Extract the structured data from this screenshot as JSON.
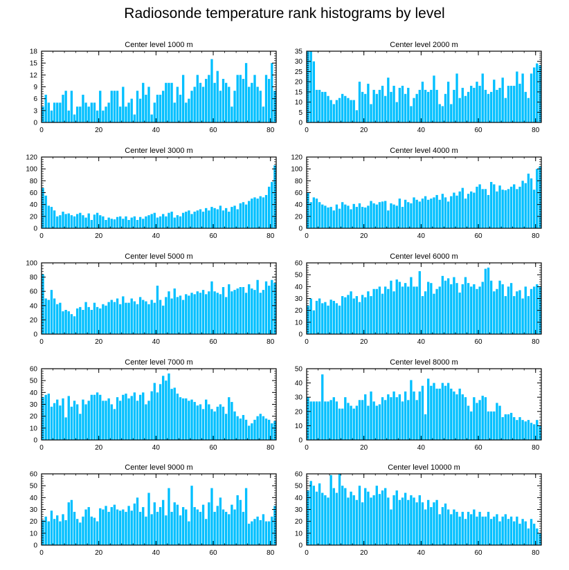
{
  "title": "Radiosonde temperature rank histograms by level",
  "colors": {
    "bar": "#00BFFF",
    "bar_edge": "#ffffff",
    "axis": "#000000",
    "text": "#000000"
  },
  "chart_data": [
    {
      "type": "bar",
      "title": "Center level 1000 m",
      "xlabel": "",
      "ylabel": "",
      "xlim": [
        0,
        82
      ],
      "ylim": [
        0,
        18
      ],
      "xticks": [
        0,
        20,
        40,
        60,
        80
      ],
      "yticks": [
        0,
        3,
        6,
        9,
        12,
        15,
        18
      ],
      "values": [
        4,
        7,
        5,
        3,
        5,
        5,
        5,
        7,
        8,
        3,
        8,
        2,
        4,
        4,
        7,
        5,
        4,
        5,
        5,
        3,
        8,
        3,
        4,
        5,
        8,
        8,
        8,
        4,
        9,
        4,
        5,
        6,
        2,
        8,
        6,
        10,
        7,
        9,
        2,
        5,
        7,
        7,
        8,
        10,
        10,
        10,
        5,
        9,
        7,
        12,
        5,
        6,
        8,
        9,
        12,
        10,
        9,
        11,
        12,
        16,
        10,
        13,
        8,
        11,
        10,
        9,
        4,
        8,
        12,
        12,
        11,
        15,
        9,
        10,
        12,
        9,
        8,
        4,
        12,
        11,
        15,
        8
      ]
    },
    {
      "type": "bar",
      "title": "Center level 2000 m",
      "xlabel": "",
      "ylabel": "",
      "xlim": [
        0,
        82
      ],
      "ylim": [
        0,
        35
      ],
      "xticks": [
        0,
        20,
        40,
        60,
        80
      ],
      "yticks": [
        0,
        5,
        10,
        15,
        20,
        25,
        30,
        35
      ],
      "values": [
        35,
        35,
        30,
        16,
        16,
        15,
        15,
        13,
        11,
        9,
        11,
        12,
        14,
        13,
        12,
        11,
        11,
        6,
        20,
        15,
        14,
        19,
        9,
        16,
        14,
        16,
        18,
        13,
        22,
        15,
        18,
        10,
        17,
        18,
        14,
        17,
        8,
        12,
        14,
        16,
        20,
        16,
        15,
        16,
        23,
        16,
        9,
        8,
        14,
        20,
        9,
        16,
        24,
        12,
        17,
        13,
        15,
        18,
        17,
        20,
        18,
        24,
        16,
        14,
        15,
        21,
        16,
        17,
        22,
        12,
        18,
        18,
        18,
        25,
        19,
        24,
        15,
        12,
        24,
        27,
        29,
        28
      ]
    },
    {
      "type": "bar",
      "title": "Center level 3000 m",
      "xlabel": "",
      "ylabel": "",
      "xlim": [
        0,
        82
      ],
      "ylim": [
        0,
        120
      ],
      "xticks": [
        0,
        20,
        40,
        60,
        80
      ],
      "yticks": [
        0,
        20,
        40,
        60,
        80,
        100,
        120
      ],
      "values": [
        68,
        55,
        38,
        36,
        30,
        20,
        22,
        28,
        24,
        25,
        22,
        20,
        24,
        26,
        22,
        18,
        25,
        14,
        23,
        26,
        22,
        20,
        14,
        18,
        16,
        15,
        19,
        20,
        16,
        20,
        14,
        18,
        20,
        14,
        19,
        16,
        20,
        22,
        24,
        26,
        18,
        20,
        24,
        20,
        26,
        28,
        18,
        22,
        20,
        26,
        28,
        30,
        24,
        28,
        30,
        32,
        28,
        34,
        30,
        36,
        34,
        32,
        38,
        30,
        34,
        28,
        36,
        38,
        32,
        42,
        44,
        40,
        46,
        50,
        52,
        50,
        54,
        52,
        56,
        70,
        78,
        106
      ]
    },
    {
      "type": "bar",
      "title": "Center level 4000 m",
      "xlabel": "",
      "ylabel": "",
      "xlim": [
        0,
        82
      ],
      "ylim": [
        0,
        120
      ],
      "xticks": [
        0,
        20,
        40,
        60,
        80
      ],
      "yticks": [
        0,
        20,
        40,
        60,
        80,
        100,
        120
      ],
      "values": [
        60,
        44,
        52,
        50,
        44,
        40,
        38,
        35,
        36,
        30,
        40,
        33,
        44,
        40,
        38,
        32,
        41,
        36,
        42,
        36,
        35,
        38,
        46,
        42,
        40,
        44,
        45,
        46,
        30,
        42,
        40,
        38,
        50,
        36,
        48,
        44,
        42,
        52,
        48,
        45,
        50,
        54,
        48,
        50,
        52,
        56,
        48,
        58,
        52,
        45,
        54,
        60,
        55,
        62,
        68,
        50,
        58,
        62,
        60,
        70,
        74,
        66,
        66,
        56,
        78,
        74,
        62,
        72,
        65,
        64,
        66,
        70,
        74,
        66,
        70,
        80,
        76,
        92,
        84,
        65,
        100,
        104
      ]
    },
    {
      "type": "bar",
      "title": "Center level 5000 m",
      "xlabel": "",
      "ylabel": "",
      "xlim": [
        0,
        82
      ],
      "ylim": [
        0,
        100
      ],
      "xticks": [
        0,
        20,
        40,
        60,
        80
      ],
      "yticks": [
        0,
        20,
        40,
        60,
        80,
        100
      ],
      "values": [
        84,
        50,
        48,
        62,
        50,
        42,
        44,
        32,
        34,
        32,
        28,
        25,
        36,
        38,
        34,
        45,
        38,
        34,
        44,
        38,
        36,
        42,
        40,
        45,
        48,
        45,
        50,
        42,
        53,
        44,
        44,
        50,
        46,
        42,
        52,
        48,
        46,
        42,
        48,
        44,
        68,
        48,
        40,
        52,
        60,
        50,
        64,
        52,
        54,
        48,
        56,
        54,
        58,
        56,
        60,
        58,
        62,
        56,
        60,
        74,
        60,
        58,
        56,
        66,
        52,
        70,
        60,
        62,
        64,
        66,
        66,
        58,
        70,
        64,
        62,
        76,
        58,
        62,
        74,
        68,
        76,
        72
      ]
    },
    {
      "type": "bar",
      "title": "Center level 6000 m",
      "xlabel": "",
      "ylabel": "",
      "xlim": [
        0,
        82
      ],
      "ylim": [
        0,
        60
      ],
      "xticks": [
        0,
        20,
        40,
        60,
        80
      ],
      "yticks": [
        0,
        10,
        20,
        30,
        40,
        50,
        60
      ],
      "values": [
        24,
        30,
        20,
        28,
        30,
        26,
        27,
        24,
        29,
        28,
        26,
        24,
        32,
        31,
        33,
        36,
        30,
        32,
        27,
        33,
        31,
        36,
        32,
        38,
        38,
        40,
        34,
        40,
        38,
        45,
        36,
        46,
        44,
        40,
        43,
        40,
        48,
        40,
        40,
        53,
        32,
        36,
        44,
        43,
        34,
        38,
        40,
        49,
        45,
        47,
        42,
        48,
        43,
        35,
        42,
        48,
        43,
        40,
        42,
        38,
        40,
        44,
        55,
        56,
        45,
        36,
        38,
        45,
        42,
        32,
        40,
        43,
        32,
        36,
        37,
        30,
        40,
        32,
        38,
        40,
        42,
        40
      ]
    },
    {
      "type": "bar",
      "title": "Center level 7000 m",
      "xlabel": "",
      "ylabel": "",
      "xlim": [
        0,
        82
      ],
      "ylim": [
        0,
        60
      ],
      "xticks": [
        0,
        20,
        40,
        60,
        80
      ],
      "yticks": [
        0,
        10,
        20,
        30,
        40,
        50,
        60
      ],
      "values": [
        36,
        38,
        39,
        28,
        31,
        34,
        29,
        35,
        19,
        37,
        28,
        33,
        30,
        22,
        34,
        30,
        33,
        38,
        38,
        40,
        38,
        33,
        33,
        35,
        30,
        26,
        36,
        33,
        38,
        39,
        35,
        37,
        40,
        33,
        38,
        40,
        30,
        33,
        41,
        48,
        40,
        47,
        54,
        50,
        56,
        43,
        44,
        39,
        36,
        35,
        35,
        33,
        34,
        32,
        29,
        30,
        26,
        34,
        30,
        26,
        24,
        28,
        30,
        28,
        22,
        36,
        32,
        24,
        20,
        18,
        21,
        17,
        12,
        14,
        17,
        20,
        22,
        20,
        18,
        17,
        14,
        16
      ]
    },
    {
      "type": "bar",
      "title": "Center level 8000 m",
      "xlabel": "",
      "ylabel": "",
      "xlim": [
        0,
        82
      ],
      "ylim": [
        0,
        50
      ],
      "xticks": [
        0,
        20,
        40,
        60,
        80
      ],
      "yticks": [
        0,
        10,
        20,
        30,
        40,
        50
      ],
      "values": [
        30,
        27,
        27,
        27,
        27,
        46,
        27,
        27,
        28,
        30,
        27,
        22,
        22,
        30,
        26,
        24,
        22,
        24,
        28,
        28,
        32,
        24,
        34,
        27,
        24,
        25,
        30,
        28,
        32,
        30,
        34,
        30,
        32,
        27,
        34,
        28,
        42,
        34,
        28,
        34,
        38,
        18,
        43,
        38,
        40,
        36,
        36,
        40,
        38,
        40,
        36,
        34,
        32,
        36,
        32,
        30,
        24,
        20,
        30,
        26,
        28,
        31,
        30,
        20,
        20,
        20,
        26,
        24,
        16,
        18,
        18,
        19,
        16,
        14,
        16,
        14,
        13,
        14,
        12,
        11,
        14,
        10
      ]
    },
    {
      "type": "bar",
      "title": "Center level 9000 m",
      "xlabel": "",
      "ylabel": "",
      "xlim": [
        0,
        82
      ],
      "ylim": [
        0,
        60
      ],
      "xticks": [
        0,
        20,
        40,
        60,
        80
      ],
      "yticks": [
        0,
        10,
        20,
        30,
        40,
        50,
        60
      ],
      "values": [
        21,
        24,
        20,
        29,
        22,
        25,
        20,
        26,
        21,
        36,
        38,
        28,
        22,
        19,
        24,
        30,
        32,
        24,
        23,
        20,
        31,
        30,
        33,
        28,
        32,
        34,
        30,
        29,
        30,
        28,
        33,
        29,
        35,
        40,
        28,
        32,
        24,
        44,
        26,
        36,
        28,
        32,
        38,
        25,
        48,
        28,
        36,
        34,
        25,
        32,
        30,
        20,
        50,
        32,
        30,
        28,
        34,
        22,
        36,
        48,
        28,
        33,
        40,
        30,
        28,
        26,
        34,
        30,
        42,
        38,
        28,
        48,
        18,
        20,
        22,
        24,
        21,
        26,
        20,
        20,
        24,
        33
      ]
    },
    {
      "type": "bar",
      "title": "Center level 10000 m",
      "xlabel": "",
      "ylabel": "",
      "xlim": [
        0,
        82
      ],
      "ylim": [
        0,
        60
      ],
      "xticks": [
        0,
        20,
        40,
        60,
        80
      ],
      "yticks": [
        0,
        10,
        20,
        30,
        40,
        50,
        60
      ],
      "values": [
        46,
        54,
        50,
        45,
        52,
        44,
        42,
        40,
        59,
        48,
        44,
        60,
        50,
        48,
        40,
        45,
        42,
        38,
        50,
        36,
        48,
        45,
        40,
        42,
        50,
        43,
        46,
        48,
        40,
        30,
        42,
        46,
        38,
        40,
        44,
        38,
        42,
        40,
        36,
        42,
        36,
        30,
        38,
        32,
        36,
        38,
        26,
        32,
        35,
        30,
        26,
        30,
        28,
        24,
        28,
        22,
        28,
        26,
        30,
        24,
        28,
        24,
        24,
        28,
        22,
        24,
        26,
        20,
        24,
        26,
        22,
        24,
        20,
        24,
        18,
        22,
        20,
        14,
        22,
        18,
        14,
        10
      ]
    }
  ]
}
